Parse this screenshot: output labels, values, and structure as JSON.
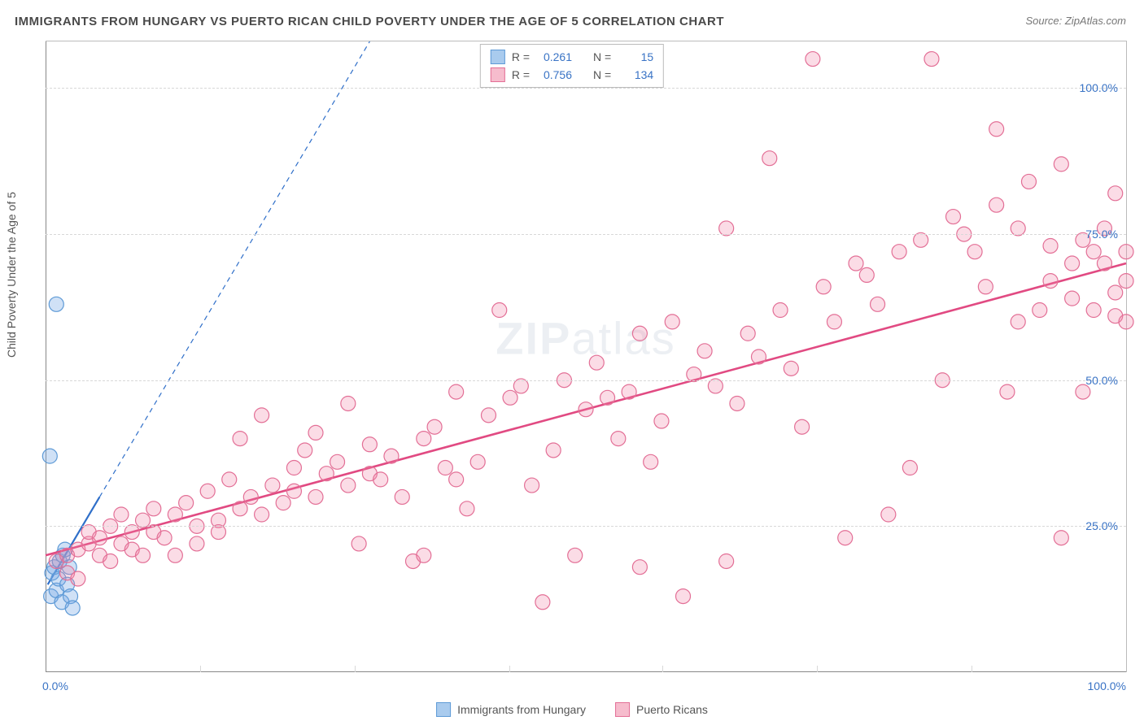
{
  "title": "IMMIGRANTS FROM HUNGARY VS PUERTO RICAN CHILD POVERTY UNDER THE AGE OF 5 CORRELATION CHART",
  "source_label": "Source: ZipAtlas.com",
  "y_axis_label": "Child Poverty Under the Age of 5",
  "watermark": "ZIPatlas",
  "chart": {
    "type": "scatter",
    "background_color": "#ffffff",
    "grid_color": "#d8d8d8",
    "axis_color": "#888888",
    "xlim": [
      0,
      100
    ],
    "ylim": [
      0,
      108
    ],
    "y_ticks": [
      25,
      50,
      75,
      100
    ],
    "y_tick_labels": [
      "25.0%",
      "50.0%",
      "75.0%",
      "100.0%"
    ],
    "x_ticks": [
      0,
      100
    ],
    "x_tick_labels": [
      "0.0%",
      "100.0%"
    ],
    "x_minor_ticks": [
      14.3,
      28.6,
      42.9,
      57.1,
      71.4,
      85.7
    ],
    "tick_label_color": "#3973c5",
    "marker_radius": 9,
    "marker_stroke_width": 1.2,
    "series": [
      {
        "name": "Immigrants from Hungary",
        "fill_color": "rgba(120,170,230,0.35)",
        "stroke_color": "#5e9ad6",
        "swatch_fill": "#a9cbee",
        "swatch_border": "#5e9ad6",
        "R": "0.261",
        "N": "15",
        "trend": {
          "x1": 0.2,
          "y1": 15,
          "x2": 5,
          "y2": 30,
          "dash_x2": 30,
          "dash_y2": 108,
          "stroke": "#2f6fc9",
          "width": 2.2
        },
        "points": [
          [
            0.5,
            13
          ],
          [
            0.6,
            17
          ],
          [
            0.8,
            18
          ],
          [
            1.0,
            14
          ],
          [
            1.2,
            16
          ],
          [
            1.3,
            19
          ],
          [
            1.5,
            12
          ],
          [
            1.6,
            20
          ],
          [
            1.8,
            21
          ],
          [
            2.0,
            15
          ],
          [
            2.3,
            13
          ],
          [
            2.5,
            11
          ],
          [
            0.4,
            37
          ],
          [
            1.0,
            63
          ],
          [
            2.2,
            18
          ]
        ]
      },
      {
        "name": "Puerto Ricans",
        "fill_color": "rgba(240,130,165,0.28)",
        "stroke_color": "#e36f96",
        "swatch_fill": "#f6bccd",
        "swatch_border": "#e36f96",
        "R": "0.756",
        "N": "134",
        "trend": {
          "x1": 0,
          "y1": 20,
          "x2": 100,
          "y2": 70,
          "stroke": "#e14a82",
          "width": 2.6
        },
        "points": [
          [
            1,
            19
          ],
          [
            2,
            20
          ],
          [
            2,
            17
          ],
          [
            3,
            21
          ],
          [
            3,
            16
          ],
          [
            4,
            22
          ],
          [
            4,
            24
          ],
          [
            5,
            20
          ],
          [
            5,
            23
          ],
          [
            6,
            19
          ],
          [
            6,
            25
          ],
          [
            7,
            22
          ],
          [
            7,
            27
          ],
          [
            8,
            24
          ],
          [
            8,
            21
          ],
          [
            9,
            20
          ],
          [
            9,
            26
          ],
          [
            10,
            24
          ],
          [
            10,
            28
          ],
          [
            11,
            23
          ],
          [
            12,
            20
          ],
          [
            12,
            27
          ],
          [
            13,
            29
          ],
          [
            14,
            25
          ],
          [
            14,
            22
          ],
          [
            15,
            31
          ],
          [
            16,
            26
          ],
          [
            16,
            24
          ],
          [
            17,
            33
          ],
          [
            18,
            40
          ],
          [
            18,
            28
          ],
          [
            19,
            30
          ],
          [
            20,
            44
          ],
          [
            20,
            27
          ],
          [
            21,
            32
          ],
          [
            22,
            29
          ],
          [
            23,
            35
          ],
          [
            23,
            31
          ],
          [
            24,
            38
          ],
          [
            25,
            41
          ],
          [
            25,
            30
          ],
          [
            26,
            34
          ],
          [
            27,
            36
          ],
          [
            28,
            46
          ],
          [
            28,
            32
          ],
          [
            29,
            22
          ],
          [
            30,
            39
          ],
          [
            30,
            34
          ],
          [
            31,
            33
          ],
          [
            32,
            37
          ],
          [
            33,
            30
          ],
          [
            34,
            19
          ],
          [
            35,
            20
          ],
          [
            35,
            40
          ],
          [
            36,
            42
          ],
          [
            37,
            35
          ],
          [
            38,
            48
          ],
          [
            38,
            33
          ],
          [
            39,
            28
          ],
          [
            40,
            36
          ],
          [
            41,
            44
          ],
          [
            42,
            62
          ],
          [
            43,
            47
          ],
          [
            44,
            49
          ],
          [
            45,
            32
          ],
          [
            46,
            12
          ],
          [
            47,
            38
          ],
          [
            48,
            50
          ],
          [
            49,
            20
          ],
          [
            50,
            45
          ],
          [
            51,
            53
          ],
          [
            52,
            47
          ],
          [
            53,
            40
          ],
          [
            54,
            48
          ],
          [
            55,
            58
          ],
          [
            56,
            36
          ],
          [
            57,
            43
          ],
          [
            58,
            60
          ],
          [
            59,
            13
          ],
          [
            60,
            51
          ],
          [
            61,
            55
          ],
          [
            62,
            49
          ],
          [
            63,
            76
          ],
          [
            64,
            46
          ],
          [
            65,
            58
          ],
          [
            66,
            54
          ],
          [
            67,
            88
          ],
          [
            68,
            62
          ],
          [
            69,
            52
          ],
          [
            70,
            42
          ],
          [
            71,
            105
          ],
          [
            72,
            66
          ],
          [
            73,
            60
          ],
          [
            74,
            23
          ],
          [
            75,
            70
          ],
          [
            76,
            68
          ],
          [
            77,
            63
          ],
          [
            78,
            27
          ],
          [
            79,
            72
          ],
          [
            80,
            35
          ],
          [
            81,
            74
          ],
          [
            82,
            105
          ],
          [
            83,
            50
          ],
          [
            84,
            78
          ],
          [
            85,
            75
          ],
          [
            86,
            72
          ],
          [
            87,
            66
          ],
          [
            88,
            80
          ],
          [
            88,
            93
          ],
          [
            89,
            48
          ],
          [
            90,
            60
          ],
          [
            90,
            76
          ],
          [
            91,
            84
          ],
          [
            92,
            62
          ],
          [
            93,
            73
          ],
          [
            93,
            67
          ],
          [
            94,
            87
          ],
          [
            95,
            64
          ],
          [
            95,
            70
          ],
          [
            96,
            74
          ],
          [
            96,
            48
          ],
          [
            97,
            72
          ],
          [
            97,
            62
          ],
          [
            98,
            76
          ],
          [
            98,
            70
          ],
          [
            99,
            61
          ],
          [
            99,
            65
          ],
          [
            99,
            82
          ],
          [
            100,
            72
          ],
          [
            100,
            67
          ],
          [
            100,
            60
          ],
          [
            94,
            23
          ],
          [
            63,
            19
          ],
          [
            55,
            18
          ]
        ]
      }
    ]
  },
  "legend_top": {
    "R_label": "R =",
    "N_label": "N ="
  },
  "legend_bottom": [
    {
      "label": "Immigrants from Hungary",
      "series_index": 0
    },
    {
      "label": "Puerto Ricans",
      "series_index": 1
    }
  ]
}
